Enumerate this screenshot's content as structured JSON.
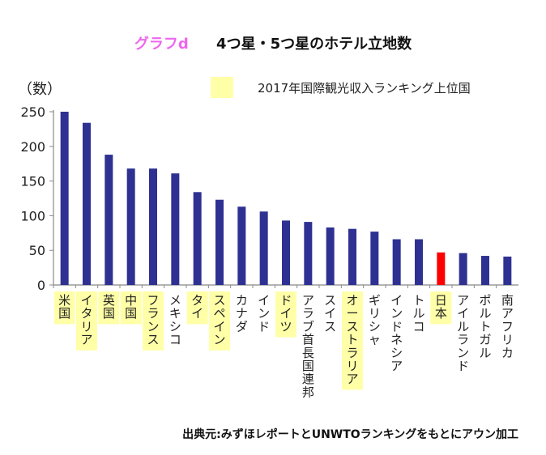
{
  "header": {
    "graph_label": "グラフd",
    "title": "4つ星・5つ星のホテル立地数"
  },
  "legend": {
    "entry": "2017年国際観光収入ランキング上位国",
    "swatch_color": "#ffffa8"
  },
  "source": "出典元:みずほレポートとUNWTOランキングをもとにアウン加工",
  "colors": {
    "bar": "#2e3192",
    "highlight_bar": "#ff0000",
    "highlight_label_bg": "#ffffa8"
  },
  "chart_data": {
    "type": "bar",
    "title": "4つ星・5つ星のホテル立地数",
    "ylabel": "（数）",
    "xlabel": "",
    "ylim": [
      0,
      250
    ],
    "yticks": [
      0,
      50,
      100,
      150,
      200,
      250
    ],
    "grid": false,
    "legend_position": "top-right",
    "categories": [
      "米国",
      "イタリア",
      "英国",
      "中国",
      "フランス",
      "メキシコ",
      "タイ",
      "スペイン",
      "カナダ",
      "インド",
      "ドイツ",
      "アラブ首長国連邦",
      "スイス",
      "オーストラリア",
      "ギリシャ",
      "インドネシア",
      "トルコ",
      "日本",
      "アイルランド",
      "ポルトガル",
      "南アフリカ"
    ],
    "values": [
      250,
      234,
      188,
      168,
      168,
      161,
      134,
      123,
      113,
      106,
      93,
      91,
      83,
      81,
      77,
      66,
      66,
      47,
      46,
      42,
      41
    ],
    "top_tourism_revenue": [
      true,
      true,
      true,
      true,
      true,
      false,
      true,
      true,
      false,
      false,
      true,
      false,
      false,
      true,
      false,
      false,
      false,
      true,
      false,
      false,
      false
    ],
    "highlighted_category": "日本"
  }
}
